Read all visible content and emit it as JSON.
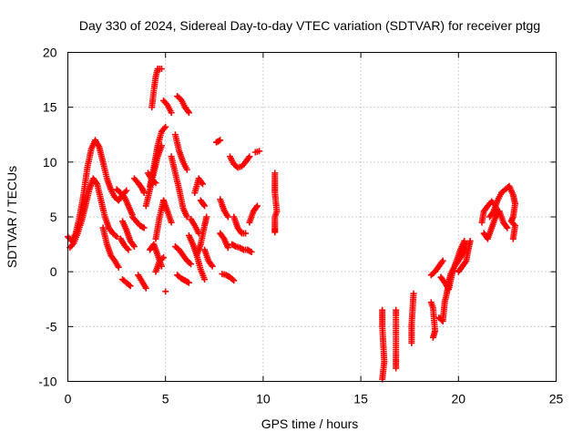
{
  "chart_data": {
    "type": "scatter",
    "title": "Day 330 of 2024, Sidereal Day-to-day VTEC variation (SDTVAR) for receiver ptgg",
    "xlabel": "GPS time / hours",
    "ylabel": "SDTVAR / TECUs",
    "xlim": [
      0,
      25
    ],
    "ylim": [
      -10,
      20
    ],
    "xticks": [
      "0",
      "5",
      "10",
      "15",
      "20",
      "25"
    ],
    "yticks": [
      "-10",
      "-5",
      "0",
      "5",
      "10",
      "15",
      "20"
    ],
    "grid": true,
    "marker": "+",
    "color": "#ff0000",
    "series": [
      {
        "name": "SDTVAR",
        "segments": [
          [
            [
              0.0,
              3.2
            ],
            [
              0.2,
              2.8
            ],
            [
              0.4,
              3.5
            ],
            [
              0.6,
              5.0
            ],
            [
              0.8,
              7.0
            ],
            [
              1.0,
              9.5
            ],
            [
              1.2,
              11.2
            ],
            [
              1.4,
              12.0
            ],
            [
              1.6,
              11.4
            ],
            [
              1.8,
              10.0
            ],
            [
              2.0,
              8.5
            ],
            [
              2.2,
              7.5
            ],
            [
              2.4,
              6.8
            ],
            [
              2.6,
              6.5
            ],
            [
              2.8,
              7.0
            ],
            [
              3.0,
              7.4
            ]
          ],
          [
            [
              0.1,
              2.2
            ],
            [
              0.3,
              2.6
            ],
            [
              0.5,
              3.5
            ],
            [
              0.7,
              4.6
            ],
            [
              0.9,
              6.0
            ],
            [
              1.1,
              7.5
            ],
            [
              1.3,
              8.5
            ],
            [
              1.5,
              8.0
            ],
            [
              1.7,
              6.5
            ],
            [
              1.9,
              5.0
            ],
            [
              2.1,
              4.0
            ],
            [
              2.3,
              3.5
            ],
            [
              2.5,
              3.2
            ]
          ],
          [
            [
              1.8,
              4.0
            ],
            [
              2.0,
              2.5
            ],
            [
              2.2,
              1.5
            ],
            [
              2.4,
              1.0
            ],
            [
              2.6,
              0.4
            ]
          ],
          [
            [
              2.5,
              7.5
            ],
            [
              2.7,
              7.2
            ],
            [
              2.9,
              6.8
            ],
            [
              3.1,
              6.0
            ],
            [
              3.3,
              5.2
            ]
          ],
          [
            [
              2.8,
              4.6
            ],
            [
              3.0,
              3.8
            ],
            [
              3.2,
              2.8
            ],
            [
              3.4,
              2.3
            ]
          ],
          [
            [
              2.7,
              3.0
            ],
            [
              2.9,
              2.4
            ],
            [
              3.1,
              2.0
            ]
          ],
          [
            [
              3.4,
              8.5
            ],
            [
              3.6,
              8.1
            ],
            [
              3.8,
              7.6
            ],
            [
              3.9,
              7.2
            ]
          ],
          [
            [
              3.3,
              5.0
            ],
            [
              3.5,
              4.6
            ],
            [
              3.7,
              4.2
            ],
            [
              3.9,
              4.0
            ]
          ],
          [
            [
              2.8,
              -0.7
            ],
            [
              3.0,
              -1.0
            ],
            [
              3.2,
              -1.3
            ]
          ],
          [
            [
              3.6,
              -0.3
            ],
            [
              3.8,
              -0.9
            ],
            [
              4.0,
              -1.5
            ]
          ],
          [
            [
              4.2,
              7.8
            ],
            [
              4.4,
              9.5
            ],
            [
              4.6,
              11.5
            ],
            [
              4.8,
              12.8
            ],
            [
              5.0,
              13.2
            ]
          ],
          [
            [
              4.0,
              6.0
            ],
            [
              4.2,
              7.5
            ],
            [
              4.4,
              9.0
            ],
            [
              4.6,
              10.5
            ],
            [
              4.8,
              11.5
            ]
          ],
          [
            [
              4.1,
              9.0
            ],
            [
              4.3,
              8.4
            ],
            [
              4.5,
              8.1
            ]
          ],
          [
            [
              4.3,
              15.0
            ],
            [
              4.4,
              16.5
            ],
            [
              4.5,
              17.8
            ],
            [
              4.6,
              18.5
            ],
            [
              4.8,
              18.5
            ]
          ],
          [
            [
              4.9,
              15.6
            ],
            [
              5.1,
              15.2
            ],
            [
              5.3,
              14.5
            ]
          ],
          [
            [
              4.2,
              2.0
            ],
            [
              4.4,
              2.5
            ],
            [
              4.6,
              1.5
            ],
            [
              4.8,
              0.5
            ]
          ],
          [
            [
              4.5,
              0.0
            ],
            [
              4.7,
              1.0
            ],
            [
              4.9,
              1.3
            ]
          ],
          [
            [
              4.9,
              6.5
            ],
            [
              5.1,
              5.5
            ],
            [
              5.3,
              4.5
            ]
          ],
          [
            [
              4.5,
              3.0
            ],
            [
              4.7,
              5.0
            ],
            [
              4.9,
              6.5
            ]
          ],
          [
            [
              5.0,
              -1.8
            ]
          ],
          [
            [
              5.3,
              10.5
            ],
            [
              5.5,
              9.0
            ],
            [
              5.7,
              7.5
            ],
            [
              5.9,
              5.8
            ],
            [
              6.1,
              5.0
            ]
          ],
          [
            [
              5.5,
              2.3
            ],
            [
              5.7,
              2.0
            ],
            [
              5.9,
              1.5
            ],
            [
              6.1,
              1.0
            ],
            [
              6.3,
              0.7
            ]
          ],
          [
            [
              5.6,
              16.0
            ],
            [
              5.8,
              15.7
            ],
            [
              6.0,
              15.0
            ],
            [
              6.2,
              14.5
            ]
          ],
          [
            [
              5.5,
              12.5
            ],
            [
              5.7,
              11.0
            ],
            [
              5.9,
              10.0
            ],
            [
              6.1,
              9.3
            ]
          ],
          [
            [
              5.6,
              -0.3
            ],
            [
              5.8,
              -0.6
            ],
            [
              6.0,
              -0.8
            ],
            [
              6.2,
              -1.0
            ]
          ],
          [
            [
              6.2,
              3.3
            ],
            [
              6.4,
              2.5
            ],
            [
              6.6,
              1.5
            ],
            [
              6.8,
              0.2
            ],
            [
              7.0,
              -0.7
            ]
          ],
          [
            [
              6.3,
              4.8
            ],
            [
              6.5,
              4.2
            ],
            [
              6.7,
              3.5
            ]
          ],
          [
            [
              6.5,
              7.2
            ],
            [
              6.7,
              8.5
            ],
            [
              6.9,
              8.0
            ]
          ],
          [
            [
              6.6,
              1.5
            ],
            [
              6.8,
              2.5
            ],
            [
              7.0,
              4.2
            ],
            [
              7.1,
              5.0
            ]
          ],
          [
            [
              6.8,
              6.5
            ],
            [
              7.0,
              6.0
            ]
          ],
          [
            [
              7.0,
              2.0
            ],
            [
              7.2,
              1.0
            ],
            [
              7.4,
              0.5
            ]
          ],
          [
            [
              7.6,
              11.8
            ],
            [
              7.8,
              12.0
            ]
          ],
          [
            [
              7.8,
              6.6
            ],
            [
              8.0,
              5.6
            ],
            [
              8.2,
              5.0
            ]
          ],
          [
            [
              7.8,
              3.5
            ],
            [
              8.0,
              3.0
            ],
            [
              8.2,
              2.2
            ]
          ],
          [
            [
              7.9,
              -0.2
            ],
            [
              8.1,
              -0.3
            ],
            [
              8.3,
              -0.5
            ],
            [
              8.5,
              -0.8
            ]
          ],
          [
            [
              8.3,
              10.5
            ],
            [
              8.5,
              9.8
            ],
            [
              8.7,
              9.5
            ],
            [
              8.9,
              9.6
            ],
            [
              9.1,
              10.0
            ],
            [
              9.3,
              10.5
            ]
          ],
          [
            [
              8.5,
              5.0
            ],
            [
              8.7,
              4.0
            ],
            [
              8.9,
              3.5
            ],
            [
              9.1,
              3.5
            ]
          ],
          [
            [
              8.4,
              2.5
            ],
            [
              8.6,
              2.3
            ],
            [
              8.8,
              2.2
            ],
            [
              9.0,
              2.0
            ],
            [
              9.2,
              2.0
            ],
            [
              9.4,
              1.8
            ]
          ],
          [
            [
              9.3,
              4.5
            ],
            [
              9.5,
              5.5
            ],
            [
              9.7,
              6.0
            ]
          ],
          [
            [
              9.6,
              10.9
            ],
            [
              9.8,
              11.0
            ]
          ],
          [
            [
              10.6,
              9.0
            ],
            [
              10.6,
              8.0
            ],
            [
              10.6,
              7.2
            ],
            [
              10.7,
              5.5
            ],
            [
              10.6,
              5.0
            ],
            [
              10.6,
              4.0
            ],
            [
              10.6,
              3.6
            ]
          ],
          [
            [
              16.1,
              -3.5
            ],
            [
              16.1,
              -4.0
            ],
            [
              16.1,
              -5.0
            ],
            [
              16.2,
              -8.2
            ],
            [
              16.1,
              -9.8
            ]
          ],
          [
            [
              16.8,
              -3.5
            ],
            [
              16.8,
              -4.0
            ],
            [
              16.8,
              -7.3
            ],
            [
              16.8,
              -8.0
            ],
            [
              16.8,
              -8.8
            ]
          ],
          [
            [
              17.7,
              -2.0
            ],
            [
              17.6,
              -4.8
            ],
            [
              17.6,
              -5.5
            ],
            [
              17.6,
              -6.5
            ]
          ],
          [
            [
              18.6,
              -2.8
            ],
            [
              18.7,
              -3.3
            ],
            [
              18.8,
              -5.4
            ],
            [
              18.7,
              -6.0
            ]
          ],
          [
            [
              19.0,
              -4.2
            ],
            [
              19.2,
              -4.5
            ],
            [
              19.3,
              -2.7
            ],
            [
              19.4,
              -2.0
            ],
            [
              19.5,
              -1.0
            ],
            [
              19.6,
              -0.2
            ],
            [
              19.8,
              0.5
            ],
            [
              20.0,
              1.0
            ],
            [
              20.2,
              1.6
            ],
            [
              20.4,
              2.5
            ]
          ],
          [
            [
              19.1,
              -0.5
            ],
            [
              19.3,
              -1.0
            ],
            [
              19.5,
              -1.6
            ],
            [
              19.7,
              0.0
            ],
            [
              19.9,
              1.0
            ],
            [
              20.1,
              2.0
            ],
            [
              20.3,
              2.8
            ]
          ],
          [
            [
              18.6,
              -0.3
            ],
            [
              18.8,
              0.0
            ],
            [
              19.0,
              0.5
            ],
            [
              19.2,
              1.0
            ]
          ],
          [
            [
              20.0,
              0.0
            ],
            [
              20.2,
              0.5
            ],
            [
              20.4,
              1.0
            ],
            [
              20.5,
              2.0
            ],
            [
              20.6,
              2.8
            ]
          ],
          [
            [
              21.2,
              4.5
            ],
            [
              21.3,
              5.5
            ],
            [
              21.5,
              6.0
            ],
            [
              21.7,
              6.4
            ],
            [
              21.9,
              6.0
            ],
            [
              22.0,
              5.2
            ]
          ],
          [
            [
              21.3,
              3.5
            ],
            [
              21.5,
              3.0
            ],
            [
              21.7,
              4.0
            ],
            [
              21.9,
              5.0
            ],
            [
              22.1,
              5.5
            ],
            [
              22.3,
              4.5
            ],
            [
              22.5,
              4.0
            ]
          ],
          [
            [
              21.6,
              5.0
            ],
            [
              21.8,
              5.5
            ],
            [
              22.0,
              6.5
            ],
            [
              22.2,
              7.2
            ],
            [
              22.4,
              7.5
            ],
            [
              22.6,
              7.8
            ],
            [
              22.8,
              7.0
            ],
            [
              22.9,
              6.2
            ],
            [
              22.8,
              5.0
            ],
            [
              22.7,
              4.6
            ],
            [
              22.9,
              4.2
            ],
            [
              22.8,
              3.0
            ]
          ]
        ]
      }
    ]
  }
}
